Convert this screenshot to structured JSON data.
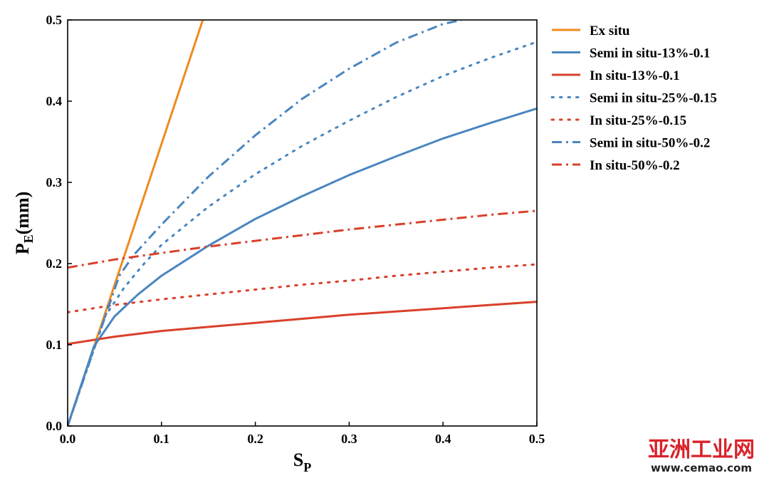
{
  "chart_data": {
    "type": "line",
    "xlabel": "S",
    "xlabel_sub": "P",
    "ylabel": "P",
    "ylabel_sub": "E",
    "ylabel_unit": "(mm)",
    "xlim": [
      0,
      0.5
    ],
    "ylim": [
      0,
      0.5
    ],
    "x_ticks": [
      "0.0",
      "0.1",
      "0.2",
      "0.3",
      "0.4",
      "0.5"
    ],
    "y_ticks": [
      "0.0",
      "0.1",
      "0.2",
      "0.3",
      "0.4",
      "0.5"
    ],
    "grid": false,
    "legend_position": "right",
    "series": [
      {
        "name": "Ex situ",
        "color": "#f08a1e",
        "style": "solid",
        "x": [
          0,
          0.144
        ],
        "y": [
          0,
          0.5
        ]
      },
      {
        "name": "Semi in situ-13%-0.1",
        "color": "#4a86c0",
        "style": "solid",
        "x": [
          0,
          0.028,
          0.05,
          0.075,
          0.1,
          0.15,
          0.2,
          0.25,
          0.3,
          0.35,
          0.4,
          0.45,
          0.5
        ],
        "y": [
          0,
          0.098,
          0.135,
          0.162,
          0.185,
          0.222,
          0.255,
          0.283,
          0.309,
          0.332,
          0.354,
          0.373,
          0.391
        ]
      },
      {
        "name": "In situ-13%-0.1",
        "color": "#d9402a",
        "style": "solid",
        "x": [
          0,
          0.05,
          0.1,
          0.15,
          0.2,
          0.25,
          0.3,
          0.35,
          0.4,
          0.45,
          0.5
        ],
        "y": [
          0.101,
          0.11,
          0.117,
          0.122,
          0.127,
          0.132,
          0.137,
          0.141,
          0.145,
          0.149,
          0.153
        ]
      },
      {
        "name": "Semi in situ-25%-0.15",
        "color": "#4a86c0",
        "style": "dot",
        "x": [
          0,
          0.04,
          0.06,
          0.08,
          0.1,
          0.15,
          0.2,
          0.25,
          0.3,
          0.35,
          0.4,
          0.45,
          0.5
        ],
        "y": [
          0,
          0.135,
          0.17,
          0.198,
          0.223,
          0.27,
          0.31,
          0.345,
          0.376,
          0.405,
          0.431,
          0.453,
          0.473
        ]
      },
      {
        "name": "In situ-25%-0.15",
        "color": "#d9402a",
        "style": "dot",
        "x": [
          0,
          0.05,
          0.1,
          0.15,
          0.2,
          0.25,
          0.3,
          0.35,
          0.4,
          0.45,
          0.5
        ],
        "y": [
          0.14,
          0.149,
          0.156,
          0.162,
          0.168,
          0.174,
          0.179,
          0.185,
          0.19,
          0.195,
          0.199
        ]
      },
      {
        "name": "Semi in situ-50%-0.2",
        "color": "#4a86c0",
        "style": "dashdot",
        "x": [
          0,
          0.055,
          0.07,
          0.1,
          0.15,
          0.2,
          0.25,
          0.3,
          0.35,
          0.4,
          0.42
        ],
        "y": [
          0,
          0.185,
          0.21,
          0.248,
          0.307,
          0.358,
          0.403,
          0.44,
          0.472,
          0.495,
          0.5
        ]
      },
      {
        "name": "In situ-50%-0.2",
        "color": "#d9402a",
        "style": "dashdot",
        "x": [
          0,
          0.05,
          0.1,
          0.15,
          0.2,
          0.25,
          0.3,
          0.35,
          0.4,
          0.45,
          0.5
        ],
        "y": [
          0.195,
          0.205,
          0.213,
          0.221,
          0.228,
          0.235,
          0.242,
          0.248,
          0.254,
          0.26,
          0.265
        ]
      }
    ]
  },
  "watermark": {
    "text_cn": "亚洲工业网",
    "url": "www.cemao.com"
  }
}
